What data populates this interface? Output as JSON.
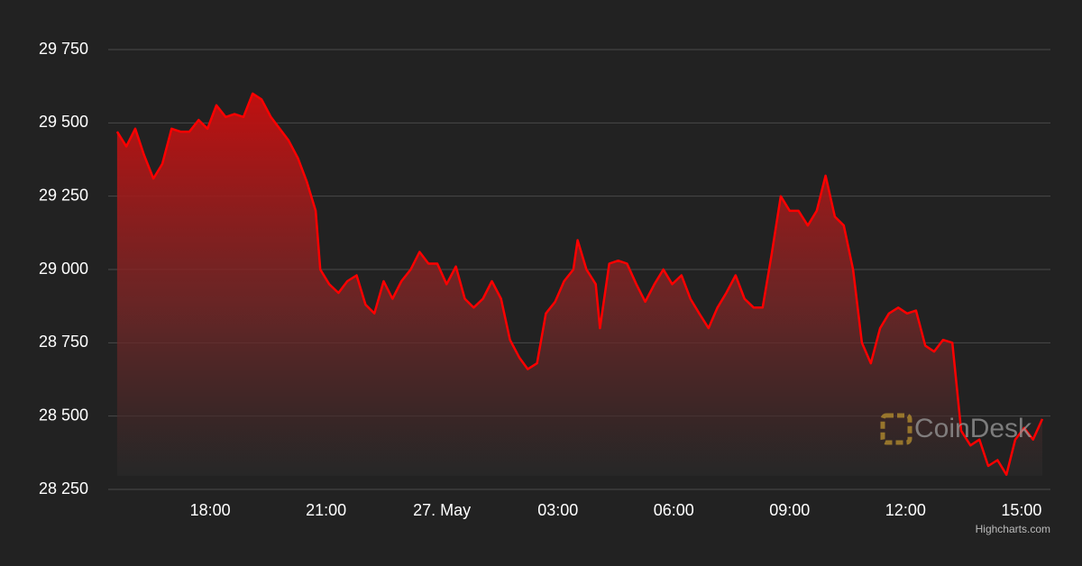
{
  "chart_data": {
    "type": "area",
    "x": [
      -8.41,
      -8.17,
      -7.94,
      -7.71,
      -7.47,
      -7.24,
      -7.0,
      -6.77,
      -6.54,
      -6.3,
      -6.07,
      -5.84,
      -5.6,
      -5.37,
      -5.14,
      -4.9,
      -4.67,
      -4.43,
      -4.2,
      -3.97,
      -3.73,
      -3.5,
      -3.27,
      -3.15,
      -2.92,
      -2.68,
      -2.45,
      -2.21,
      -1.98,
      -1.75,
      -1.51,
      -1.28,
      -1.05,
      -0.81,
      -0.58,
      -0.35,
      -0.12,
      0.12,
      0.36,
      0.59,
      0.82,
      1.06,
      1.29,
      1.53,
      1.76,
      2.0,
      2.22,
      2.46,
      2.69,
      2.93,
      3.16,
      3.4,
      3.51,
      3.74,
      3.98,
      4.09,
      4.33,
      4.56,
      4.79,
      5.03,
      5.26,
      5.5,
      5.73,
      5.96,
      6.2,
      6.43,
      6.66,
      6.9,
      7.13,
      7.36,
      7.6,
      7.83,
      8.07,
      8.3,
      8.53,
      8.77,
      9.0,
      9.23,
      9.47,
      9.7,
      9.93,
      10.17,
      10.4,
      10.64,
      10.87,
      11.1,
      11.34,
      11.57,
      11.81,
      12.04,
      12.27,
      12.51,
      12.74,
      12.97,
      13.21,
      13.44,
      13.68,
      13.91,
      14.14,
      14.38,
      14.61,
      14.84,
      15.07,
      15.3,
      15.54
    ],
    "values": [
      29470,
      29420,
      29480,
      29390,
      29310,
      29360,
      29480,
      29470,
      29470,
      29510,
      29480,
      29560,
      29520,
      29530,
      29520,
      29600,
      29580,
      29520,
      29480,
      29440,
      29380,
      29300,
      29200,
      29000,
      28950,
      28920,
      28960,
      28980,
      28880,
      28850,
      28960,
      28900,
      28960,
      29000,
      29060,
      29020,
      29020,
      28950,
      29010,
      28900,
      28870,
      28900,
      28960,
      28900,
      28760,
      28700,
      28660,
      28680,
      28850,
      28890,
      28960,
      29000,
      29100,
      29000,
      28950,
      28800,
      29020,
      29030,
      29020,
      28950,
      28890,
      28950,
      29000,
      28950,
      28980,
      28900,
      28850,
      28800,
      28870,
      28920,
      28980,
      28900,
      28870,
      28870,
      29050,
      29250,
      29200,
      29200,
      29150,
      29200,
      29320,
      29180,
      29150,
      29000,
      28750,
      28680,
      28800,
      28850,
      28870,
      28850,
      28860,
      28740,
      28720,
      28760,
      28750,
      28450,
      28400,
      28420,
      28330,
      28350,
      28300,
      28420,
      28460,
      28420,
      28490
    ],
    "color": "#ff0000",
    "xlim": [
      -8.64,
      15.75
    ],
    "xticks": [
      {
        "value": -6,
        "label": "18:00"
      },
      {
        "value": -3,
        "label": "21:00"
      },
      {
        "value": 0,
        "label": "27. May"
      },
      {
        "value": 3,
        "label": "03:00"
      },
      {
        "value": 6,
        "label": "06:00"
      },
      {
        "value": 9,
        "label": "09:00"
      },
      {
        "value": 12,
        "label": "12:00"
      },
      {
        "value": 15,
        "label": "15:00"
      }
    ],
    "ylim": [
      28250,
      29750
    ],
    "yticks": [
      {
        "value": 28250,
        "label": "28 250"
      },
      {
        "value": 28500,
        "label": "28 500"
      },
      {
        "value": 28750,
        "label": "28 750"
      },
      {
        "value": 29000,
        "label": "29 000"
      },
      {
        "value": 29250,
        "label": "29 250"
      },
      {
        "value": 29500,
        "label": "29 500"
      },
      {
        "value": 29750,
        "label": "29 750"
      }
    ],
    "grid": true,
    "watermark": "CoinDesk",
    "credits": "Highcharts.com"
  }
}
